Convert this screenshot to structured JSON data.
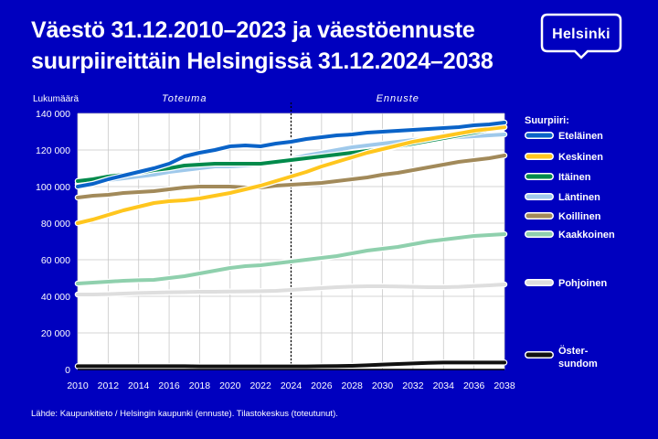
{
  "title_line1": "Väestö 31.12.2010–2023 ja väestöennuste",
  "title_line2": "suurpiireittäin Helsingissä 31.12.2024–2038",
  "logo_text": "Helsinki",
  "source": "Lähde: Kaupunkitieto / Helsingin kaupunki (ennuste). Tilastokeskus (toteutunut).",
  "colors": {
    "background": "#0000bf",
    "plot_bg": "#ffffff",
    "text": "#ffffff"
  },
  "chart_data": {
    "type": "line",
    "ylabel": "Lukumäärä",
    "ylim": [
      0,
      140000
    ],
    "yticks": [
      0,
      20000,
      40000,
      60000,
      80000,
      100000,
      120000,
      140000
    ],
    "ytick_labels": [
      "0",
      "20 000",
      "40 000",
      "60 000",
      "80 000",
      "100 000",
      "120 000",
      "140 000"
    ],
    "xlim": [
      2010,
      2038
    ],
    "xticks": [
      2010,
      2012,
      2014,
      2016,
      2018,
      2020,
      2022,
      2024,
      2026,
      2028,
      2030,
      2032,
      2034,
      2036,
      2038
    ],
    "grid": true,
    "divider_year": 2024,
    "period_labels": {
      "actual": "Toteuma",
      "forecast": "Ennuste"
    },
    "legend_title": "Suurpiiri:",
    "legend_position": "right",
    "x": [
      2010,
      2011,
      2012,
      2013,
      2014,
      2015,
      2016,
      2017,
      2018,
      2019,
      2020,
      2021,
      2022,
      2023,
      2024,
      2025,
      2026,
      2027,
      2028,
      2029,
      2030,
      2031,
      2032,
      2033,
      2034,
      2035,
      2036,
      2037,
      2038
    ],
    "series": [
      {
        "name": "Eteläinen",
        "color": "#0a63c8",
        "values": [
          100000,
          101500,
          104000,
          106000,
          108000,
          110000,
          112500,
          116500,
          118500,
          120000,
          122000,
          122500,
          122000,
          123500,
          124500,
          126000,
          127000,
          128000,
          128500,
          129500,
          130000,
          130500,
          131000,
          131500,
          132000,
          132500,
          133500,
          134000,
          135000
        ]
      },
      {
        "name": "Keskinen",
        "color": "#ffc61e",
        "values": [
          80000,
          82000,
          84500,
          87000,
          89000,
          91000,
          92000,
          92500,
          93500,
          95000,
          96500,
          98500,
          100500,
          103000,
          105500,
          108000,
          111000,
          113500,
          116000,
          118500,
          120500,
          122500,
          124500,
          126000,
          127500,
          129000,
          130500,
          131500,
          132500
        ]
      },
      {
        "name": "Itäinen",
        "color": "#008a4b",
        "values": [
          103000,
          104000,
          105500,
          106500,
          107500,
          109000,
          110000,
          111500,
          112000,
          112500,
          112500,
          112500,
          112500,
          113500,
          114500,
          115500,
          116500,
          117500,
          118500,
          119500,
          120500,
          122000,
          123500,
          125000,
          126500,
          128000,
          129500,
          131000,
          132500
        ]
      },
      {
        "name": "Läntinen",
        "color": "#9fc9eb",
        "values": [
          101500,
          102500,
          103500,
          104500,
          105500,
          106500,
          108000,
          109000,
          110000,
          111000,
          111000,
          111500,
          112000,
          113500,
          115000,
          117000,
          118500,
          120000,
          121500,
          122500,
          123500,
          124500,
          125500,
          126000,
          126500,
          127000,
          127500,
          128000,
          128500
        ]
      },
      {
        "name": "Koillinen",
        "color": "#a28a5a",
        "values": [
          94000,
          95000,
          95500,
          96500,
          97000,
          97500,
          98500,
          99500,
          100000,
          100000,
          100000,
          99500,
          99500,
          100500,
          101000,
          101500,
          102000,
          103000,
          104000,
          105000,
          106500,
          107500,
          109000,
          110500,
          112000,
          113500,
          114500,
          115500,
          117000
        ]
      },
      {
        "name": "Kaakkoinen",
        "color": "#8fd0ad",
        "values": [
          47000,
          47500,
          48000,
          48500,
          48800,
          49000,
          50000,
          51000,
          52500,
          54000,
          55500,
          56500,
          57000,
          58000,
          59000,
          60000,
          61000,
          62000,
          63500,
          65000,
          66000,
          67000,
          68500,
          70000,
          71000,
          72000,
          73000,
          73500,
          74000
        ]
      },
      {
        "name": "Pohjoinen",
        "color": "#dedede",
        "values": [
          41000,
          41000,
          41200,
          41500,
          41800,
          42000,
          42200,
          42300,
          42500,
          42500,
          42600,
          42700,
          42800,
          43000,
          43500,
          44000,
          44500,
          45000,
          45300,
          45500,
          45500,
          45400,
          45200,
          45000,
          45000,
          45200,
          45600,
          46000,
          46500
        ]
      },
      {
        "name": "Östersundom",
        "label_lines": [
          "Öster-",
          "sundom"
        ],
        "color": "#111111",
        "values": [
          1800,
          1800,
          1800,
          1800,
          1800,
          1800,
          1800,
          1800,
          1700,
          1700,
          1700,
          1700,
          1700,
          1700,
          1700,
          1700,
          1800,
          1900,
          2000,
          2300,
          2700,
          3000,
          3300,
          3600,
          3800,
          3800,
          3800,
          3800,
          3800
        ]
      }
    ]
  }
}
